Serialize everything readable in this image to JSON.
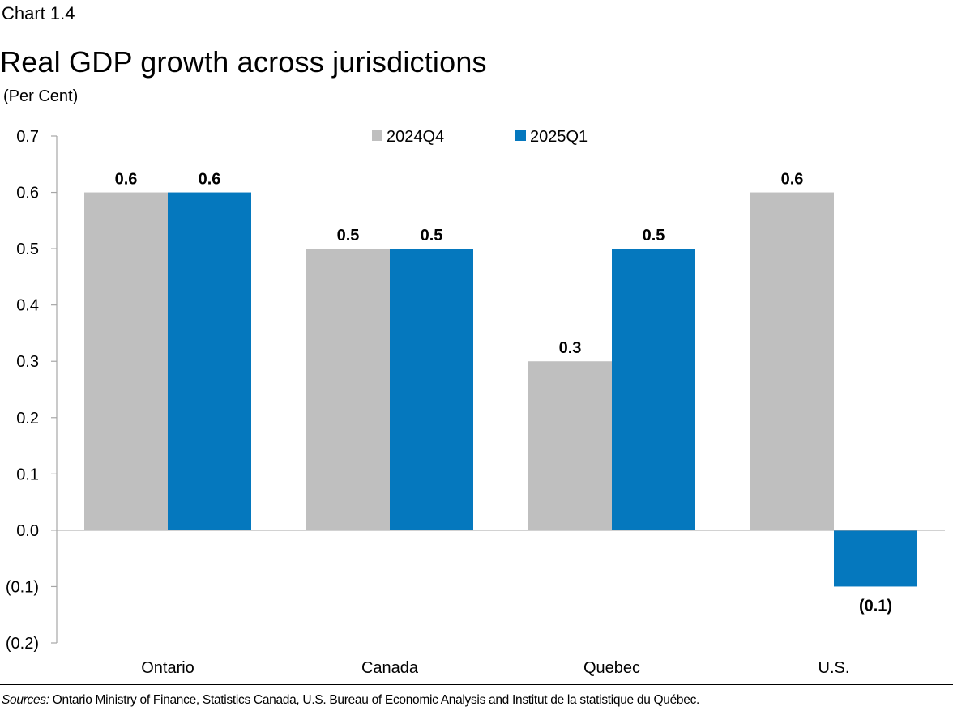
{
  "header": {
    "chart_number": "Chart 1.4",
    "title": "Real GDP growth across jurisdictions"
  },
  "footer": {
    "sources_label": "Sources:",
    "sources_text": " Ontario Ministry of Finance, Statistics Canada, U.S. Bureau of Economic Analysis and Institut de la statistique du Québec."
  },
  "colors": {
    "series_2024Q4": "#BFBFBF",
    "series_2025Q1": "#0578BE",
    "axis": "#A6A6A6"
  },
  "chart_data": {
    "type": "bar",
    "title": "Real GDP growth across jurisdictions",
    "ylabel": "(Per Cent)",
    "xlabel": "",
    "categories": [
      "Ontario",
      "Canada",
      "Quebec",
      "U.S."
    ],
    "series": [
      {
        "name": "2024Q4",
        "values": [
          0.6,
          0.5,
          0.3,
          0.6
        ],
        "labels": [
          "0.6",
          "0.5",
          "0.3",
          "0.6"
        ]
      },
      {
        "name": "2025Q1",
        "values": [
          0.6,
          0.5,
          0.5,
          -0.1
        ],
        "labels": [
          "0.6",
          "0.5",
          "0.5",
          "(0.1)"
        ]
      }
    ],
    "ylim": [
      -0.2,
      0.7
    ],
    "yticks": [
      0.7,
      0.6,
      0.5,
      0.4,
      0.3,
      0.2,
      0.1,
      0.0,
      -0.1,
      -0.2
    ],
    "ytick_labels": [
      "0.7",
      "0.6",
      "0.5",
      "0.4",
      "0.3",
      "0.2",
      "0.1",
      "0.0",
      "(0.1)",
      "(0.2)"
    ],
    "legend_position": "top-center",
    "grid": false
  }
}
